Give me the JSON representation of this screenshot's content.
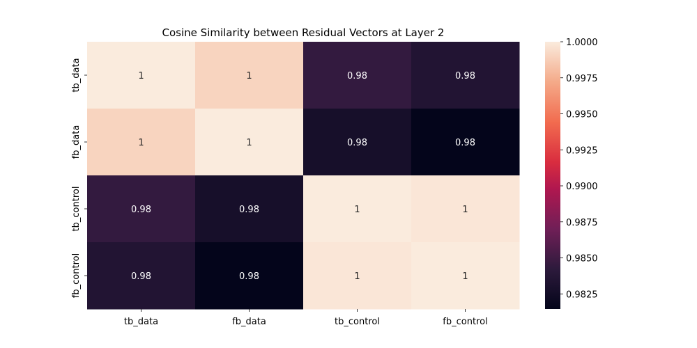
{
  "chart_data": {
    "type": "heatmap",
    "title": "Cosine Similarity between Residual Vectors at Layer 2",
    "x_categories": [
      "tb_data",
      "fb_data",
      "tb_control",
      "fb_control"
    ],
    "y_categories": [
      "tb_data",
      "fb_data",
      "tb_control",
      "fb_control"
    ],
    "values": [
      [
        1.0,
        0.999,
        0.9845,
        0.9835
      ],
      [
        0.999,
        1.0,
        0.9828,
        0.9815
      ],
      [
        0.9845,
        0.9828,
        1.0,
        0.9998
      ],
      [
        0.9835,
        0.9815,
        0.9998,
        1.0
      ]
    ],
    "annotations": [
      [
        "1",
        "1",
        "0.98",
        "0.98"
      ],
      [
        "1",
        "1",
        "0.98",
        "0.98"
      ],
      [
        "0.98",
        "0.98",
        "1",
        "1"
      ],
      [
        "0.98",
        "0.98",
        "1",
        "1"
      ]
    ],
    "colorbar": {
      "min": 0.98145,
      "max": 1.0,
      "ticks": [
        "0.9825",
        "0.9850",
        "0.9875",
        "0.9900",
        "0.9925",
        "0.9950",
        "0.9975",
        "1.0000"
      ],
      "colormap": "rocket"
    }
  }
}
